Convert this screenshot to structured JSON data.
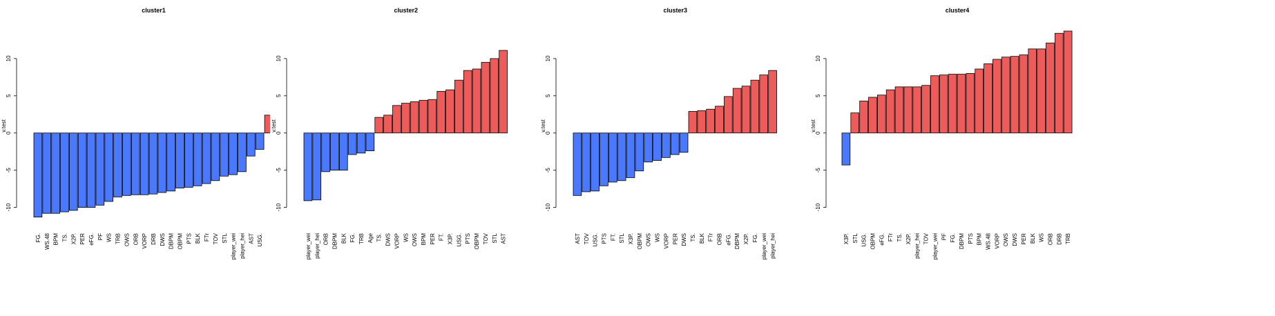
{
  "chart_data": [
    {
      "type": "bar",
      "title": "cluster1",
      "ylabel": "v.test",
      "neg_color": "#4a78ff",
      "pos_color": "#ee5b5b",
      "categories": [
        "FG.",
        "WS.48",
        "BPM",
        "TS.",
        "X2P.",
        "PER",
        "eFG.",
        "PF",
        "WS",
        "TRB",
        "OWS",
        "ORB",
        "VORP",
        "DRB",
        "DWS",
        "DBPM",
        "OBPM",
        "PTS",
        "BLK",
        "FTr",
        "TOV",
        "STL",
        "player_wei",
        "player_hei",
        "AST",
        "USG.",
        null
      ],
      "values": [
        -11.3,
        -10.8,
        -10.8,
        -10.6,
        -10.4,
        -10.0,
        -10.0,
        -9.7,
        -9.2,
        -8.6,
        -8.4,
        -8.3,
        -8.3,
        -8.2,
        -8.0,
        -7.8,
        -7.4,
        -7.3,
        -7.1,
        -6.8,
        -6.4,
        -5.8,
        -5.6,
        -5.2,
        -3.1,
        -2.2,
        2.4
      ],
      "ylim": [
        -11.8,
        13.7
      ],
      "yticks": [
        -10,
        -5,
        0,
        5,
        10
      ]
    },
    {
      "type": "bar",
      "title": "cluster2",
      "ylabel": "v.test",
      "neg_color": "#4a78ff",
      "pos_color": "#ee5b5b",
      "categories": [
        "player_wei",
        "player_hei",
        "ORB",
        "DBPM",
        "BLK",
        "FG.",
        "TRB",
        "Age",
        "TS.",
        "DWS",
        "VORP",
        "WS",
        "OWS",
        "BPM",
        "PER",
        "FT.",
        "X3P.",
        "USG.",
        "PTS",
        "OBPM",
        "TOV",
        "STL",
        "AST"
      ],
      "values": [
        -9.1,
        -9.0,
        -5.2,
        -5.0,
        -5.0,
        -2.9,
        -2.7,
        -2.4,
        2.1,
        2.4,
        3.7,
        4.0,
        4.2,
        4.4,
        4.5,
        5.6,
        5.8,
        7.1,
        8.4,
        8.6,
        9.5,
        10.0,
        11.1
      ],
      "ylim": [
        -11.8,
        13.7
      ],
      "yticks": [
        -10,
        -5,
        0,
        5,
        10
      ]
    },
    {
      "type": "bar",
      "title": "cluster3",
      "ylabel": "v.test",
      "neg_color": "#4a78ff",
      "pos_color": "#ee5b5b",
      "categories": [
        "AST",
        "TOV",
        "USG.",
        "PTS",
        "FT.",
        "STL",
        "X3P.",
        "OBPM",
        "OWS",
        "WS",
        "VORP",
        "PER",
        "DWS",
        "TS.",
        "BLK",
        "FTr",
        "ORB",
        "eFG.",
        "DBPM",
        "X2P.",
        "FG.",
        "player_wei",
        "player_hei"
      ],
      "values": [
        -8.4,
        -7.9,
        -7.8,
        -7.1,
        -6.6,
        -6.4,
        -6.0,
        -5.1,
        -3.9,
        -3.7,
        -3.3,
        -2.9,
        -2.6,
        2.9,
        3.0,
        3.2,
        3.6,
        4.9,
        6.0,
        6.3,
        7.1,
        7.8,
        8.4
      ],
      "ylim": [
        -11.8,
        13.7
      ],
      "yticks": [
        -10,
        -5,
        0,
        5,
        10
      ]
    },
    {
      "type": "bar",
      "title": "cluster4",
      "ylabel": "v.test",
      "neg_color": "#4a78ff",
      "pos_color": "#ee5b5b",
      "categories": [
        "X3P.",
        "STL",
        "USG.",
        "OBPM",
        "eFG.",
        "FTr",
        "TS.",
        "X2P.",
        "player_hei",
        "TOV",
        "player_wei",
        "PF",
        "FG.",
        "DBPM",
        "PTS",
        "BPM",
        "WS.48",
        "VORP",
        "OWS",
        "DWS",
        "PER",
        "BLK",
        "WS",
        "ORB",
        "DRB",
        "TRB"
      ],
      "values": [
        -4.3,
        2.7,
        4.3,
        4.8,
        5.1,
        5.8,
        6.2,
        6.2,
        6.2,
        6.4,
        7.7,
        7.8,
        7.9,
        7.9,
        8.0,
        8.6,
        9.3,
        9.9,
        10.2,
        10.3,
        10.5,
        11.3,
        11.3,
        12.1,
        13.4,
        13.7
      ],
      "ylim": [
        -11.8,
        13.7
      ],
      "yticks": [
        -10,
        -5,
        0,
        5,
        10
      ]
    }
  ]
}
